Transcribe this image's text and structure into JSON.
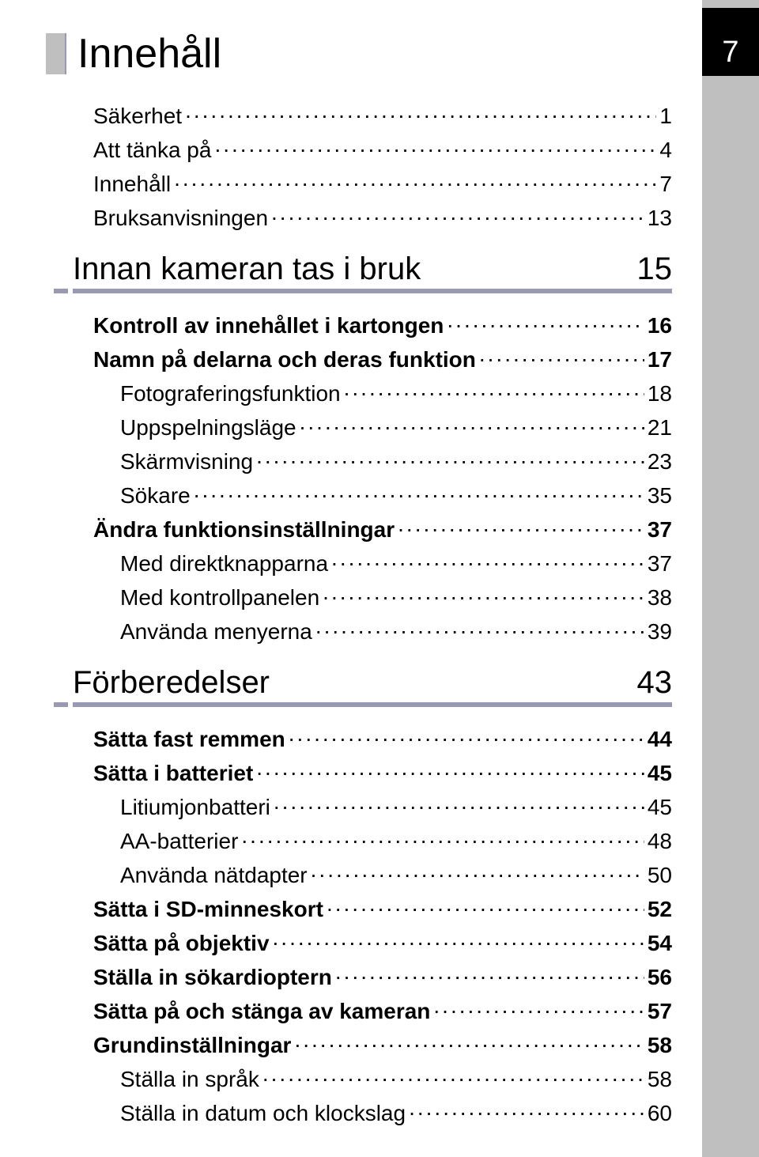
{
  "page_tab_number": "7",
  "title": "Innehåll",
  "intro_entries": [
    {
      "label": "Säkerhet",
      "page": "1",
      "bold": false,
      "sub": false
    },
    {
      "label": "Att tänka på",
      "page": "4",
      "bold": false,
      "sub": false
    },
    {
      "label": "Innehåll",
      "page": "7",
      "bold": false,
      "sub": false
    },
    {
      "label": "Bruksanvisningen",
      "page": "13",
      "bold": false,
      "sub": false
    }
  ],
  "sections": [
    {
      "heading": "Innan kameran tas i bruk",
      "page": "15",
      "entries": [
        {
          "label": "Kontroll av innehållet i kartongen",
          "page": "16",
          "bold": true,
          "sub": false
        },
        {
          "label": "Namn på delarna och deras funktion",
          "page": "17",
          "bold": true,
          "sub": false
        },
        {
          "label": "Fotograferingsfunktion",
          "page": "18",
          "bold": false,
          "sub": true
        },
        {
          "label": "Uppspelningsläge",
          "page": "21",
          "bold": false,
          "sub": true
        },
        {
          "label": "Skärmvisning",
          "page": "23",
          "bold": false,
          "sub": true
        },
        {
          "label": "Sökare",
          "page": "35",
          "bold": false,
          "sub": true
        },
        {
          "label": "Ändra funktionsinställningar",
          "page": "37",
          "bold": true,
          "sub": false
        },
        {
          "label": "Med direktknapparna",
          "page": "37",
          "bold": false,
          "sub": true
        },
        {
          "label": "Med kontrollpanelen",
          "page": "38",
          "bold": false,
          "sub": true
        },
        {
          "label": "Använda menyerna",
          "page": "39",
          "bold": false,
          "sub": true
        }
      ]
    },
    {
      "heading": "Förberedelser",
      "page": "43",
      "entries": [
        {
          "label": "Sätta fast remmen",
          "page": "44",
          "bold": true,
          "sub": false
        },
        {
          "label": "Sätta i batteriet",
          "page": "45",
          "bold": true,
          "sub": false
        },
        {
          "label": "Litiumjonbatteri",
          "page": "45",
          "bold": false,
          "sub": true
        },
        {
          "label": "AA-batterier",
          "page": "48",
          "bold": false,
          "sub": true
        },
        {
          "label": "Använda nätdapter",
          "page": "50",
          "bold": false,
          "sub": true
        },
        {
          "label": "Sätta i SD-minneskort",
          "page": "52",
          "bold": true,
          "sub": false
        },
        {
          "label": "Sätta på objektiv",
          "page": "54",
          "bold": true,
          "sub": false
        },
        {
          "label": "Ställa in sökardioptern",
          "page": "56",
          "bold": true,
          "sub": false
        },
        {
          "label": "Sätta på och stänga av kameran",
          "page": "57",
          "bold": true,
          "sub": false
        },
        {
          "label": "Grundinställningar",
          "page": "58",
          "bold": true,
          "sub": false
        },
        {
          "label": "Ställa in språk",
          "page": "58",
          "bold": false,
          "sub": true
        },
        {
          "label": "Ställa in datum och klockslag",
          "page": "60",
          "bold": false,
          "sub": true
        }
      ]
    }
  ]
}
